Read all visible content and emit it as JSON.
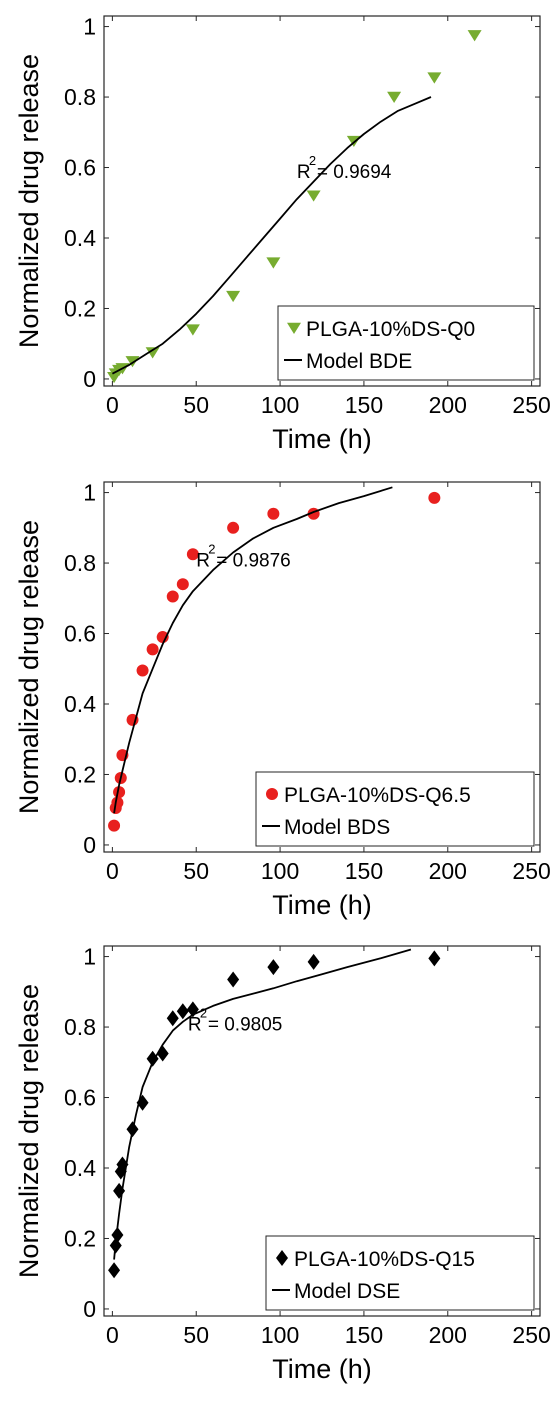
{
  "chart_data": [
    {
      "type": "scatter",
      "xlabel": "Time (h)",
      "ylabel": "Normalized drug release",
      "xlim": [
        -5,
        255
      ],
      "ylim": [
        -0.02,
        1.03
      ],
      "xticks": [
        0,
        50,
        100,
        150,
        200,
        250
      ],
      "yticks": [
        0,
        0.2,
        0.4,
        0.6,
        0.8,
        1
      ],
      "ytick_labels": [
        "0",
        "0.2",
        "0.4",
        "0.6",
        "0.8",
        "1"
      ],
      "xtick_labels": [
        "0",
        "50",
        "100",
        "150",
        "200",
        "250"
      ],
      "legend_position": "bottom-right",
      "series": [
        {
          "name": "PLGA-10%DS-Q0",
          "kind": "markers",
          "marker": "triangle-down",
          "color": "#77ac30",
          "x": [
            1,
            2,
            4,
            6,
            12,
            24,
            48,
            72,
            96,
            120,
            144,
            168,
            192,
            216
          ],
          "y": [
            0.005,
            0.015,
            0.025,
            0.03,
            0.05,
            0.075,
            0.14,
            0.235,
            0.33,
            0.52,
            0.675,
            0.8,
            0.855,
            0.975
          ]
        },
        {
          "name": "Model BDE",
          "kind": "line",
          "color": "#000000",
          "x": [
            0,
            10,
            20,
            30,
            40,
            50,
            60,
            70,
            80,
            90,
            100,
            110,
            120,
            130,
            140,
            150,
            160,
            170,
            180,
            190
          ],
          "y": [
            0.015,
            0.04,
            0.07,
            0.1,
            0.14,
            0.185,
            0.235,
            0.29,
            0.345,
            0.4,
            0.455,
            0.51,
            0.56,
            0.61,
            0.655,
            0.695,
            0.73,
            0.76,
            0.78,
            0.8
          ]
        }
      ],
      "annotation": {
        "text": "R",
        "sup": "2",
        "rest": "= 0.9694",
        "x": 110,
        "y": 0.57
      }
    },
    {
      "type": "scatter",
      "xlabel": "Time (h)",
      "ylabel": "Normalized drug release",
      "xlim": [
        -5,
        255
      ],
      "ylim": [
        -0.02,
        1.03
      ],
      "xticks": [
        0,
        50,
        100,
        150,
        200,
        250
      ],
      "yticks": [
        0,
        0.2,
        0.4,
        0.6,
        0.8,
        1
      ],
      "ytick_labels": [
        "0",
        "0.2",
        "0.4",
        "0.6",
        "0.8",
        "1"
      ],
      "xtick_labels": [
        "0",
        "50",
        "100",
        "150",
        "200",
        "250"
      ],
      "legend_position": "bottom-right",
      "series": [
        {
          "name": "PLGA-10%DS-Q6.5",
          "kind": "markers",
          "marker": "circle",
          "color": "#e8201e",
          "x": [
            1,
            2,
            3,
            4,
            5,
            6,
            12,
            18,
            24,
            30,
            36,
            42,
            48,
            72,
            96,
            120,
            192
          ],
          "y": [
            0.055,
            0.105,
            0.12,
            0.15,
            0.19,
            0.255,
            0.355,
            0.495,
            0.555,
            0.59,
            0.705,
            0.74,
            0.825,
            0.9,
            0.94,
            0.94,
            0.985
          ]
        },
        {
          "name": "Model BDS",
          "kind": "line",
          "color": "#000000",
          "x": [
            1,
            2,
            4,
            6,
            8,
            10,
            14,
            18,
            24,
            30,
            36,
            42,
            48,
            60,
            72,
            84,
            96,
            110,
            120,
            135,
            150,
            167
          ],
          "y": [
            0.09,
            0.12,
            0.17,
            0.21,
            0.25,
            0.29,
            0.36,
            0.43,
            0.5,
            0.57,
            0.63,
            0.68,
            0.72,
            0.78,
            0.83,
            0.87,
            0.9,
            0.925,
            0.945,
            0.97,
            0.99,
            1.015
          ]
        }
      ],
      "annotation": {
        "text": "R",
        "sup": "2",
        "rest": "= 0.9876",
        "x": 50,
        "y": 0.79
      }
    },
    {
      "type": "scatter",
      "xlabel": "Time (h)",
      "ylabel": "Normalized drug release",
      "xlim": [
        -5,
        255
      ],
      "ylim": [
        -0.02,
        1.03
      ],
      "xticks": [
        0,
        50,
        100,
        150,
        200,
        250
      ],
      "yticks": [
        0,
        0.2,
        0.4,
        0.6,
        0.8,
        1
      ],
      "ytick_labels": [
        "0",
        "0.2",
        "0.4",
        "0.6",
        "0.8",
        "1"
      ],
      "xtick_labels": [
        "0",
        "50",
        "100",
        "150",
        "200",
        "250"
      ],
      "legend_position": "bottom-right",
      "series": [
        {
          "name": "PLGA-10%DS-Q15",
          "kind": "markers",
          "marker": "diamond",
          "color": "#000000",
          "x": [
            1,
            2,
            3,
            4,
            5,
            6,
            12,
            18,
            24,
            30,
            36,
            42,
            48,
            72,
            96,
            120,
            192
          ],
          "y": [
            0.11,
            0.18,
            0.21,
            0.335,
            0.39,
            0.41,
            0.51,
            0.585,
            0.71,
            0.725,
            0.825,
            0.845,
            0.85,
            0.935,
            0.97,
            0.985,
            0.995
          ]
        },
        {
          "name": "Model DSE",
          "kind": "line",
          "color": "#000000",
          "x": [
            1,
            2,
            4,
            6,
            8,
            10,
            14,
            18,
            24,
            30,
            36,
            42,
            48,
            60,
            72,
            84,
            96,
            110,
            125,
            140,
            160,
            178
          ],
          "y": [
            0.14,
            0.19,
            0.27,
            0.34,
            0.4,
            0.46,
            0.55,
            0.63,
            0.7,
            0.75,
            0.79,
            0.815,
            0.835,
            0.86,
            0.88,
            0.895,
            0.91,
            0.93,
            0.95,
            0.97,
            0.995,
            1.02
          ]
        }
      ],
      "annotation": {
        "text": "R",
        "sup": "2",
        "rest": "= 0.9805",
        "x": 45,
        "y": 0.79
      }
    }
  ]
}
